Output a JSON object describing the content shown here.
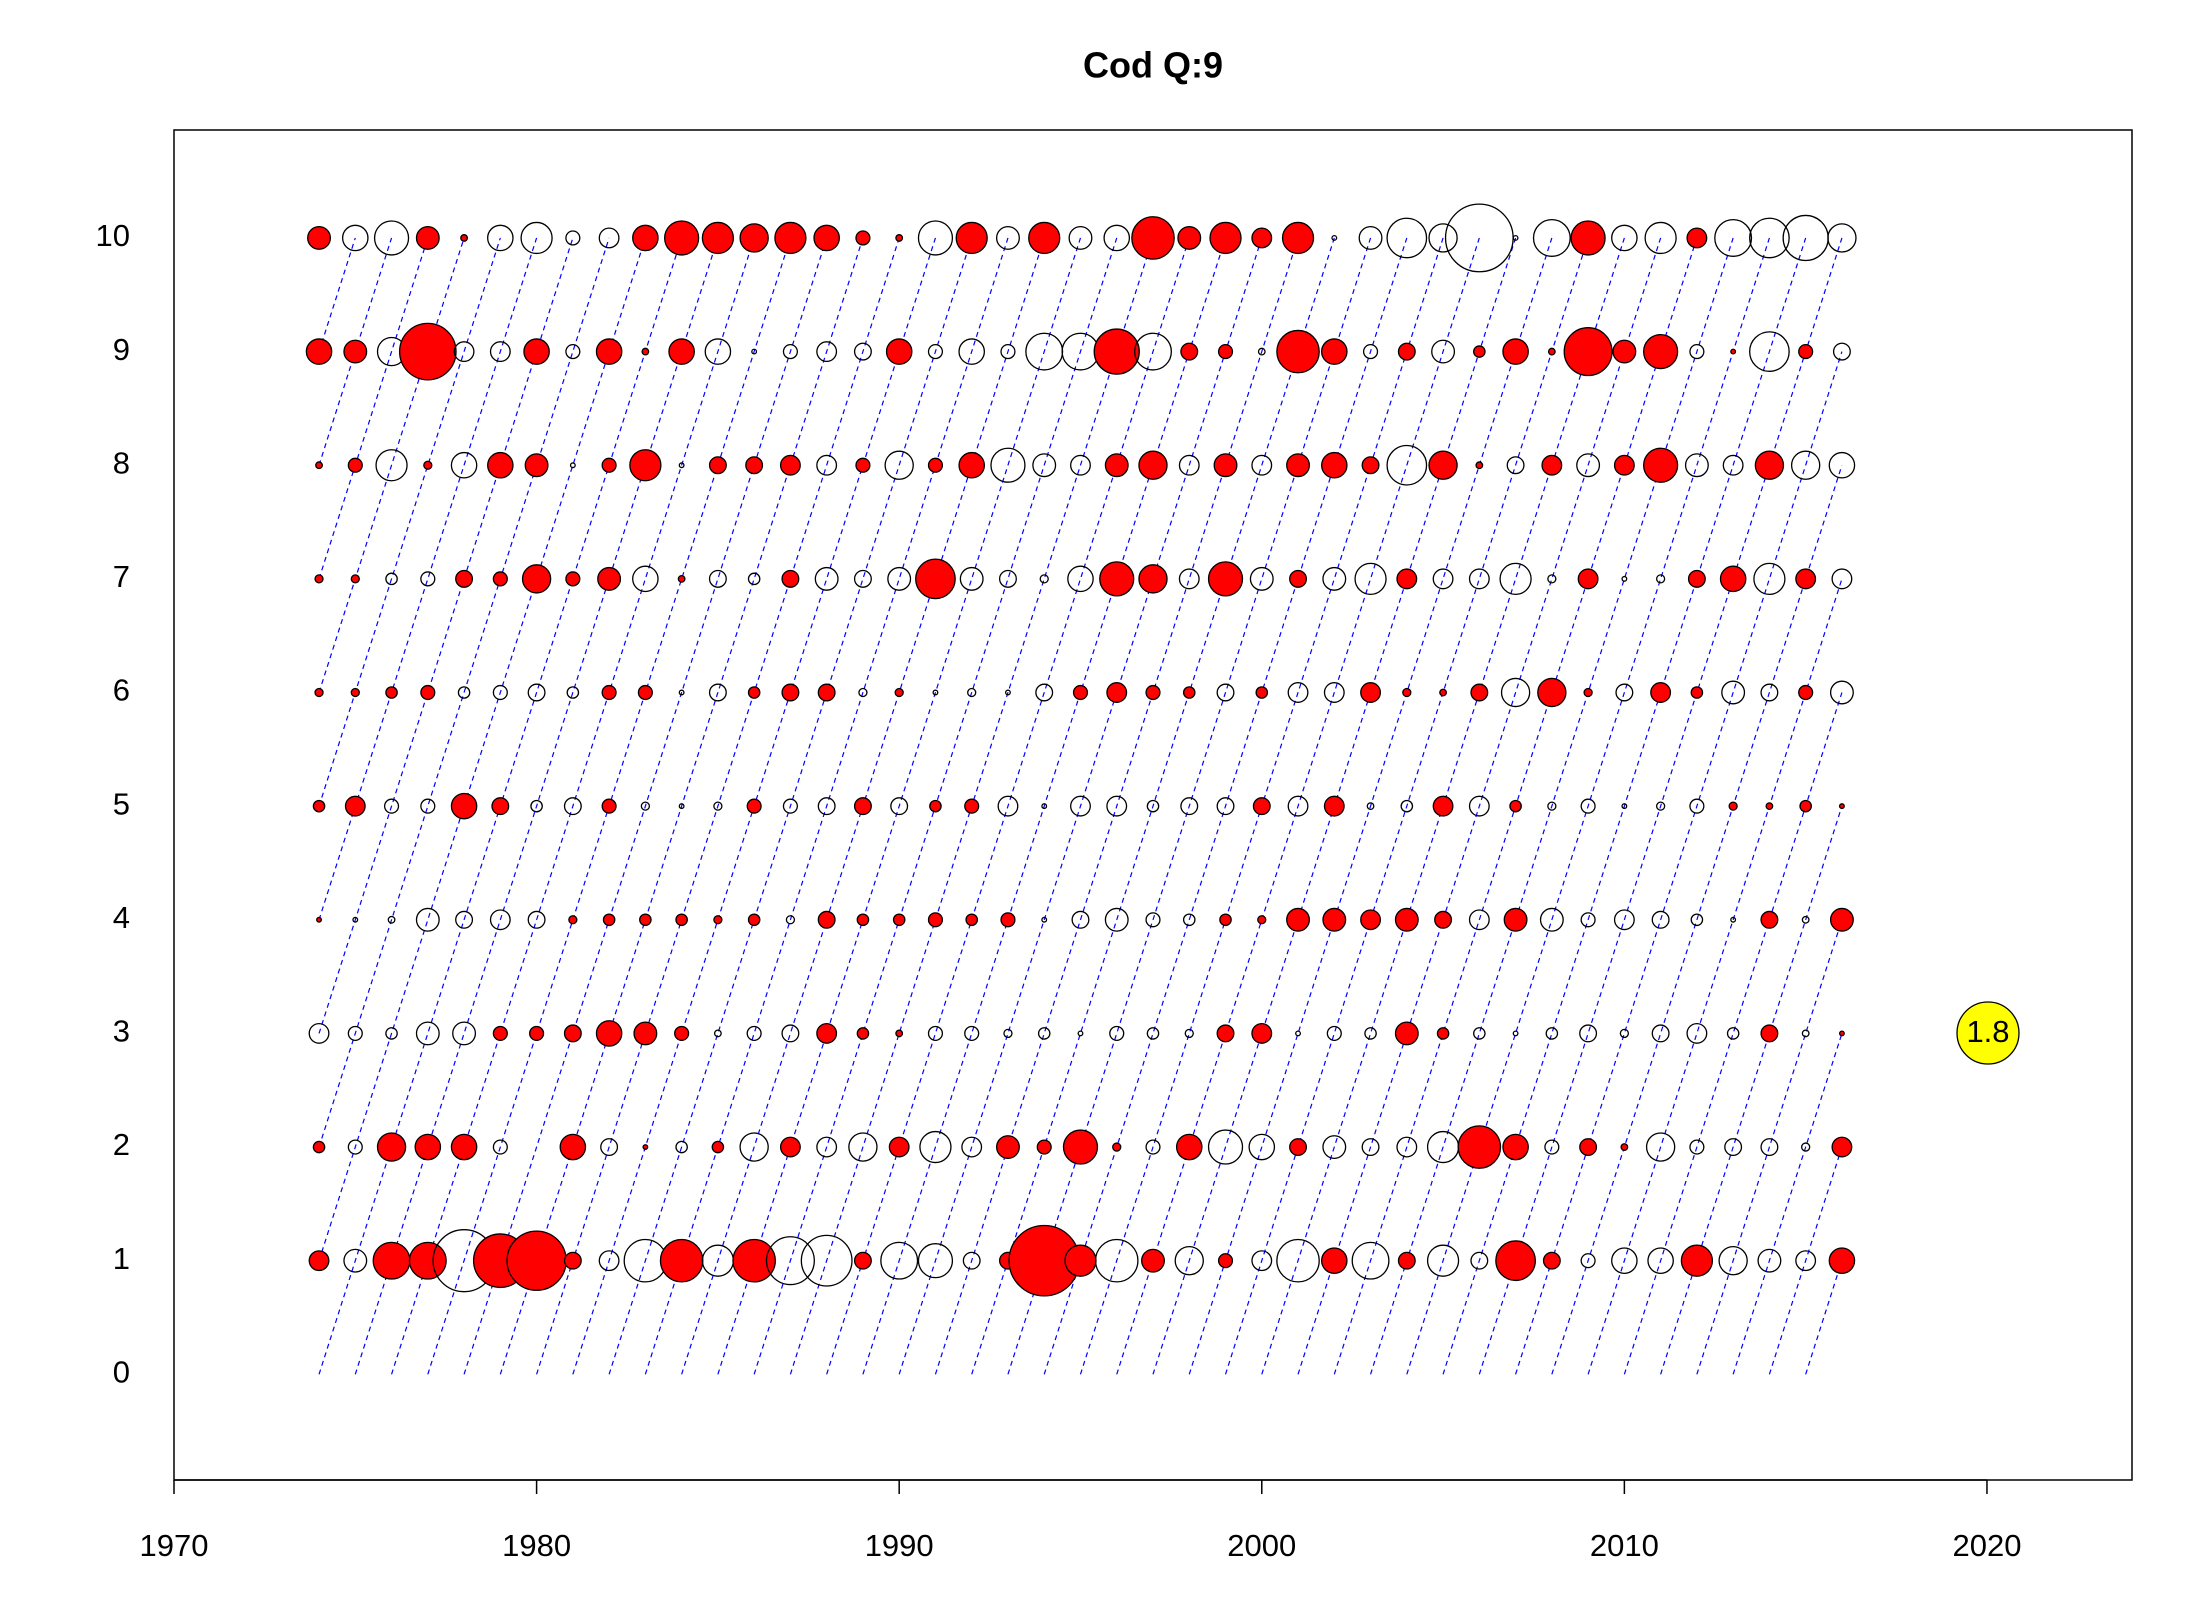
{
  "chart_data": {
    "type": "bubble",
    "title": "Cod Q:9",
    "xlim": [
      1970,
      2024
    ],
    "xticks": [
      1970,
      1980,
      1990,
      2000,
      2010,
      2020
    ],
    "ylim": [
      -0.93,
      10.95
    ],
    "yticks": [
      0,
      1,
      2,
      3,
      4,
      5,
      6,
      7,
      8,
      9,
      10
    ],
    "positive_color": "#ff0000",
    "legend_color": "#ffff00",
    "cohort_line_color": "#0000ff",
    "size_legend": 1.8,
    "x": [
      1974,
      1975,
      1976,
      1977,
      1978,
      1979,
      1980,
      1981,
      1982,
      1983,
      1984,
      1985,
      1986,
      1987,
      1988,
      1989,
      1990,
      1991,
      1992,
      1993,
      1994,
      1995,
      1996,
      1997,
      1998,
      1999,
      2000,
      2001,
      2002,
      2003,
      2004,
      2005,
      2006,
      2007,
      2008,
      2009,
      2010,
      2011,
      2012,
      2013,
      2014,
      2015,
      2016
    ],
    "ages": [
      1,
      2,
      3,
      4,
      5,
      6,
      7,
      8,
      9,
      10
    ],
    "values": [
      [
        0.18,
        -0.24,
        0.63,
        0.63,
        -1.8,
        1.34,
        1.64,
        0.13,
        -0.18,
        -0.84,
        0.84,
        -0.45,
        0.84,
        -1.07,
        -1.2,
        0.13,
        -0.63,
        -0.54,
        -0.13,
        0.13,
        2.32,
        0.45,
        -0.84,
        0.24,
        -0.37,
        0.09,
        -0.18,
        -0.84,
        0.3,
        -0.63,
        0.13,
        -0.45,
        -0.13,
        0.73,
        0.13,
        -0.09,
        -0.3,
        -0.3,
        0.45,
        -0.37,
        -0.24,
        -0.18,
        0.3
      ],
      [
        0.06,
        -0.09,
        0.37,
        0.3,
        0.3,
        -0.09,
        0,
        0.3,
        -0.13,
        0.01,
        -0.06,
        0.06,
        -0.37,
        0.18,
        -0.18,
        -0.37,
        0.18,
        -0.45,
        -0.18,
        0.24,
        0.09,
        0.54,
        0.03,
        -0.09,
        0.3,
        -0.54,
        -0.3,
        0.13,
        -0.24,
        -0.13,
        -0.18,
        -0.45,
        0.84,
        0.3,
        -0.09,
        0.13,
        0.02,
        -0.37,
        -0.09,
        -0.13,
        -0.13,
        -0.03,
        0.18
      ],
      [
        -0.18,
        -0.09,
        -0.06,
        -0.24,
        -0.24,
        0.09,
        0.09,
        0.13,
        0.3,
        0.24,
        0.09,
        -0.02,
        -0.09,
        -0.13,
        0.18,
        0.06,
        0.02,
        -0.09,
        -0.09,
        -0.03,
        -0.06,
        -0.01,
        -0.09,
        -0.06,
        -0.03,
        0.13,
        0.18,
        -0.01,
        -0.09,
        -0.06,
        0.24,
        0.06,
        -0.06,
        -0.01,
        -0.06,
        -0.13,
        -0.03,
        -0.13,
        -0.18,
        -0.06,
        0.13,
        -0.02,
        0.01
      ],
      [
        0.01,
        -0.01,
        -0.02,
        -0.24,
        -0.13,
        -0.18,
        -0.13,
        0.03,
        0.06,
        0.06,
        0.06,
        0.03,
        0.06,
        -0.03,
        0.13,
        0.06,
        0.06,
        0.09,
        0.06,
        0.09,
        -0.01,
        -0.13,
        -0.24,
        -0.09,
        -0.06,
        0.06,
        0.03,
        0.24,
        0.24,
        0.18,
        0.24,
        0.13,
        -0.18,
        0.24,
        -0.24,
        -0.09,
        -0.18,
        -0.13,
        -0.06,
        -0.01,
        0.13,
        -0.02,
        0.24
      ],
      [
        0.06,
        0.18,
        -0.09,
        -0.09,
        0.3,
        0.13,
        -0.06,
        -0.13,
        0.09,
        -0.03,
        -0.01,
        -0.03,
        0.09,
        -0.09,
        -0.13,
        0.13,
        -0.13,
        0.06,
        0.09,
        -0.18,
        -0.01,
        -0.18,
        -0.18,
        -0.06,
        -0.13,
        -0.13,
        0.13,
        -0.18,
        0.18,
        -0.02,
        -0.06,
        0.18,
        -0.18,
        0.06,
        -0.03,
        -0.09,
        -0.01,
        -0.03,
        -0.09,
        0.03,
        0.02,
        0.06,
        0.01
      ],
      [
        0.03,
        0.03,
        0.06,
        0.09,
        -0.06,
        -0.09,
        -0.13,
        -0.06,
        0.09,
        0.09,
        -0.01,
        -0.13,
        0.06,
        0.13,
        0.13,
        -0.03,
        0.03,
        -0.01,
        -0.03,
        -0.01,
        -0.13,
        0.09,
        0.18,
        0.09,
        0.06,
        -0.13,
        0.06,
        -0.18,
        -0.18,
        0.18,
        0.03,
        0.02,
        0.13,
        -0.37,
        0.37,
        0.03,
        -0.13,
        0.18,
        0.06,
        -0.24,
        -0.13,
        0.09,
        -0.24
      ],
      [
        0.03,
        0.03,
        -0.06,
        -0.09,
        0.13,
        0.09,
        0.37,
        0.09,
        0.24,
        -0.3,
        0.02,
        -0.13,
        -0.06,
        0.13,
        -0.24,
        -0.13,
        -0.24,
        0.73,
        -0.24,
        -0.13,
        -0.03,
        -0.3,
        0.54,
        0.37,
        -0.18,
        0.54,
        -0.24,
        0.13,
        -0.24,
        -0.45,
        0.18,
        -0.18,
        -0.18,
        -0.45,
        -0.03,
        0.18,
        -0.01,
        -0.03,
        0.13,
        0.3,
        -0.45,
        0.18,
        -0.18
      ],
      [
        0.02,
        0.09,
        -0.45,
        0.03,
        -0.3,
        0.3,
        0.24,
        -0.01,
        0.09,
        0.45,
        -0.01,
        0.13,
        0.13,
        0.18,
        -0.18,
        0.09,
        -0.37,
        0.09,
        0.3,
        -0.54,
        -0.24,
        -0.18,
        0.24,
        0.37,
        -0.18,
        0.24,
        -0.18,
        0.24,
        0.3,
        0.13,
        -0.73,
        0.37,
        0.02,
        -0.13,
        0.18,
        -0.24,
        0.18,
        0.54,
        -0.24,
        -0.18,
        0.37,
        -0.37,
        -0.3
      ],
      [
        0.3,
        0.24,
        -0.37,
        1.49,
        -0.18,
        -0.18,
        0.3,
        -0.09,
        0.3,
        0.02,
        0.3,
        -0.3,
        -0.01,
        -0.09,
        -0.18,
        -0.13,
        0.3,
        -0.09,
        -0.3,
        -0.09,
        -0.63,
        -0.63,
        0.95,
        -0.63,
        0.13,
        0.09,
        -0.02,
        0.84,
        0.3,
        -0.09,
        0.13,
        -0.24,
        0.06,
        0.3,
        0.02,
        1.07,
        0.24,
        0.54,
        -0.09,
        0.01,
        -0.73,
        0.09,
        -0.13
      ],
      [
        0.24,
        -0.3,
        -0.54,
        0.24,
        0.02,
        -0.3,
        -0.45,
        -0.09,
        -0.18,
        0.3,
        0.54,
        0.45,
        0.37,
        0.45,
        0.3,
        0.09,
        0.02,
        -0.54,
        0.45,
        -0.24,
        0.45,
        -0.24,
        -0.3,
        0.84,
        0.24,
        0.45,
        0.18,
        0.45,
        -0.01,
        -0.24,
        -0.73,
        -0.37,
        -2.14,
        -0.01,
        -0.63,
        0.54,
        -0.3,
        -0.45,
        0.18,
        -0.63,
        -0.73,
        -0.95,
        -0.37
      ]
    ]
  }
}
